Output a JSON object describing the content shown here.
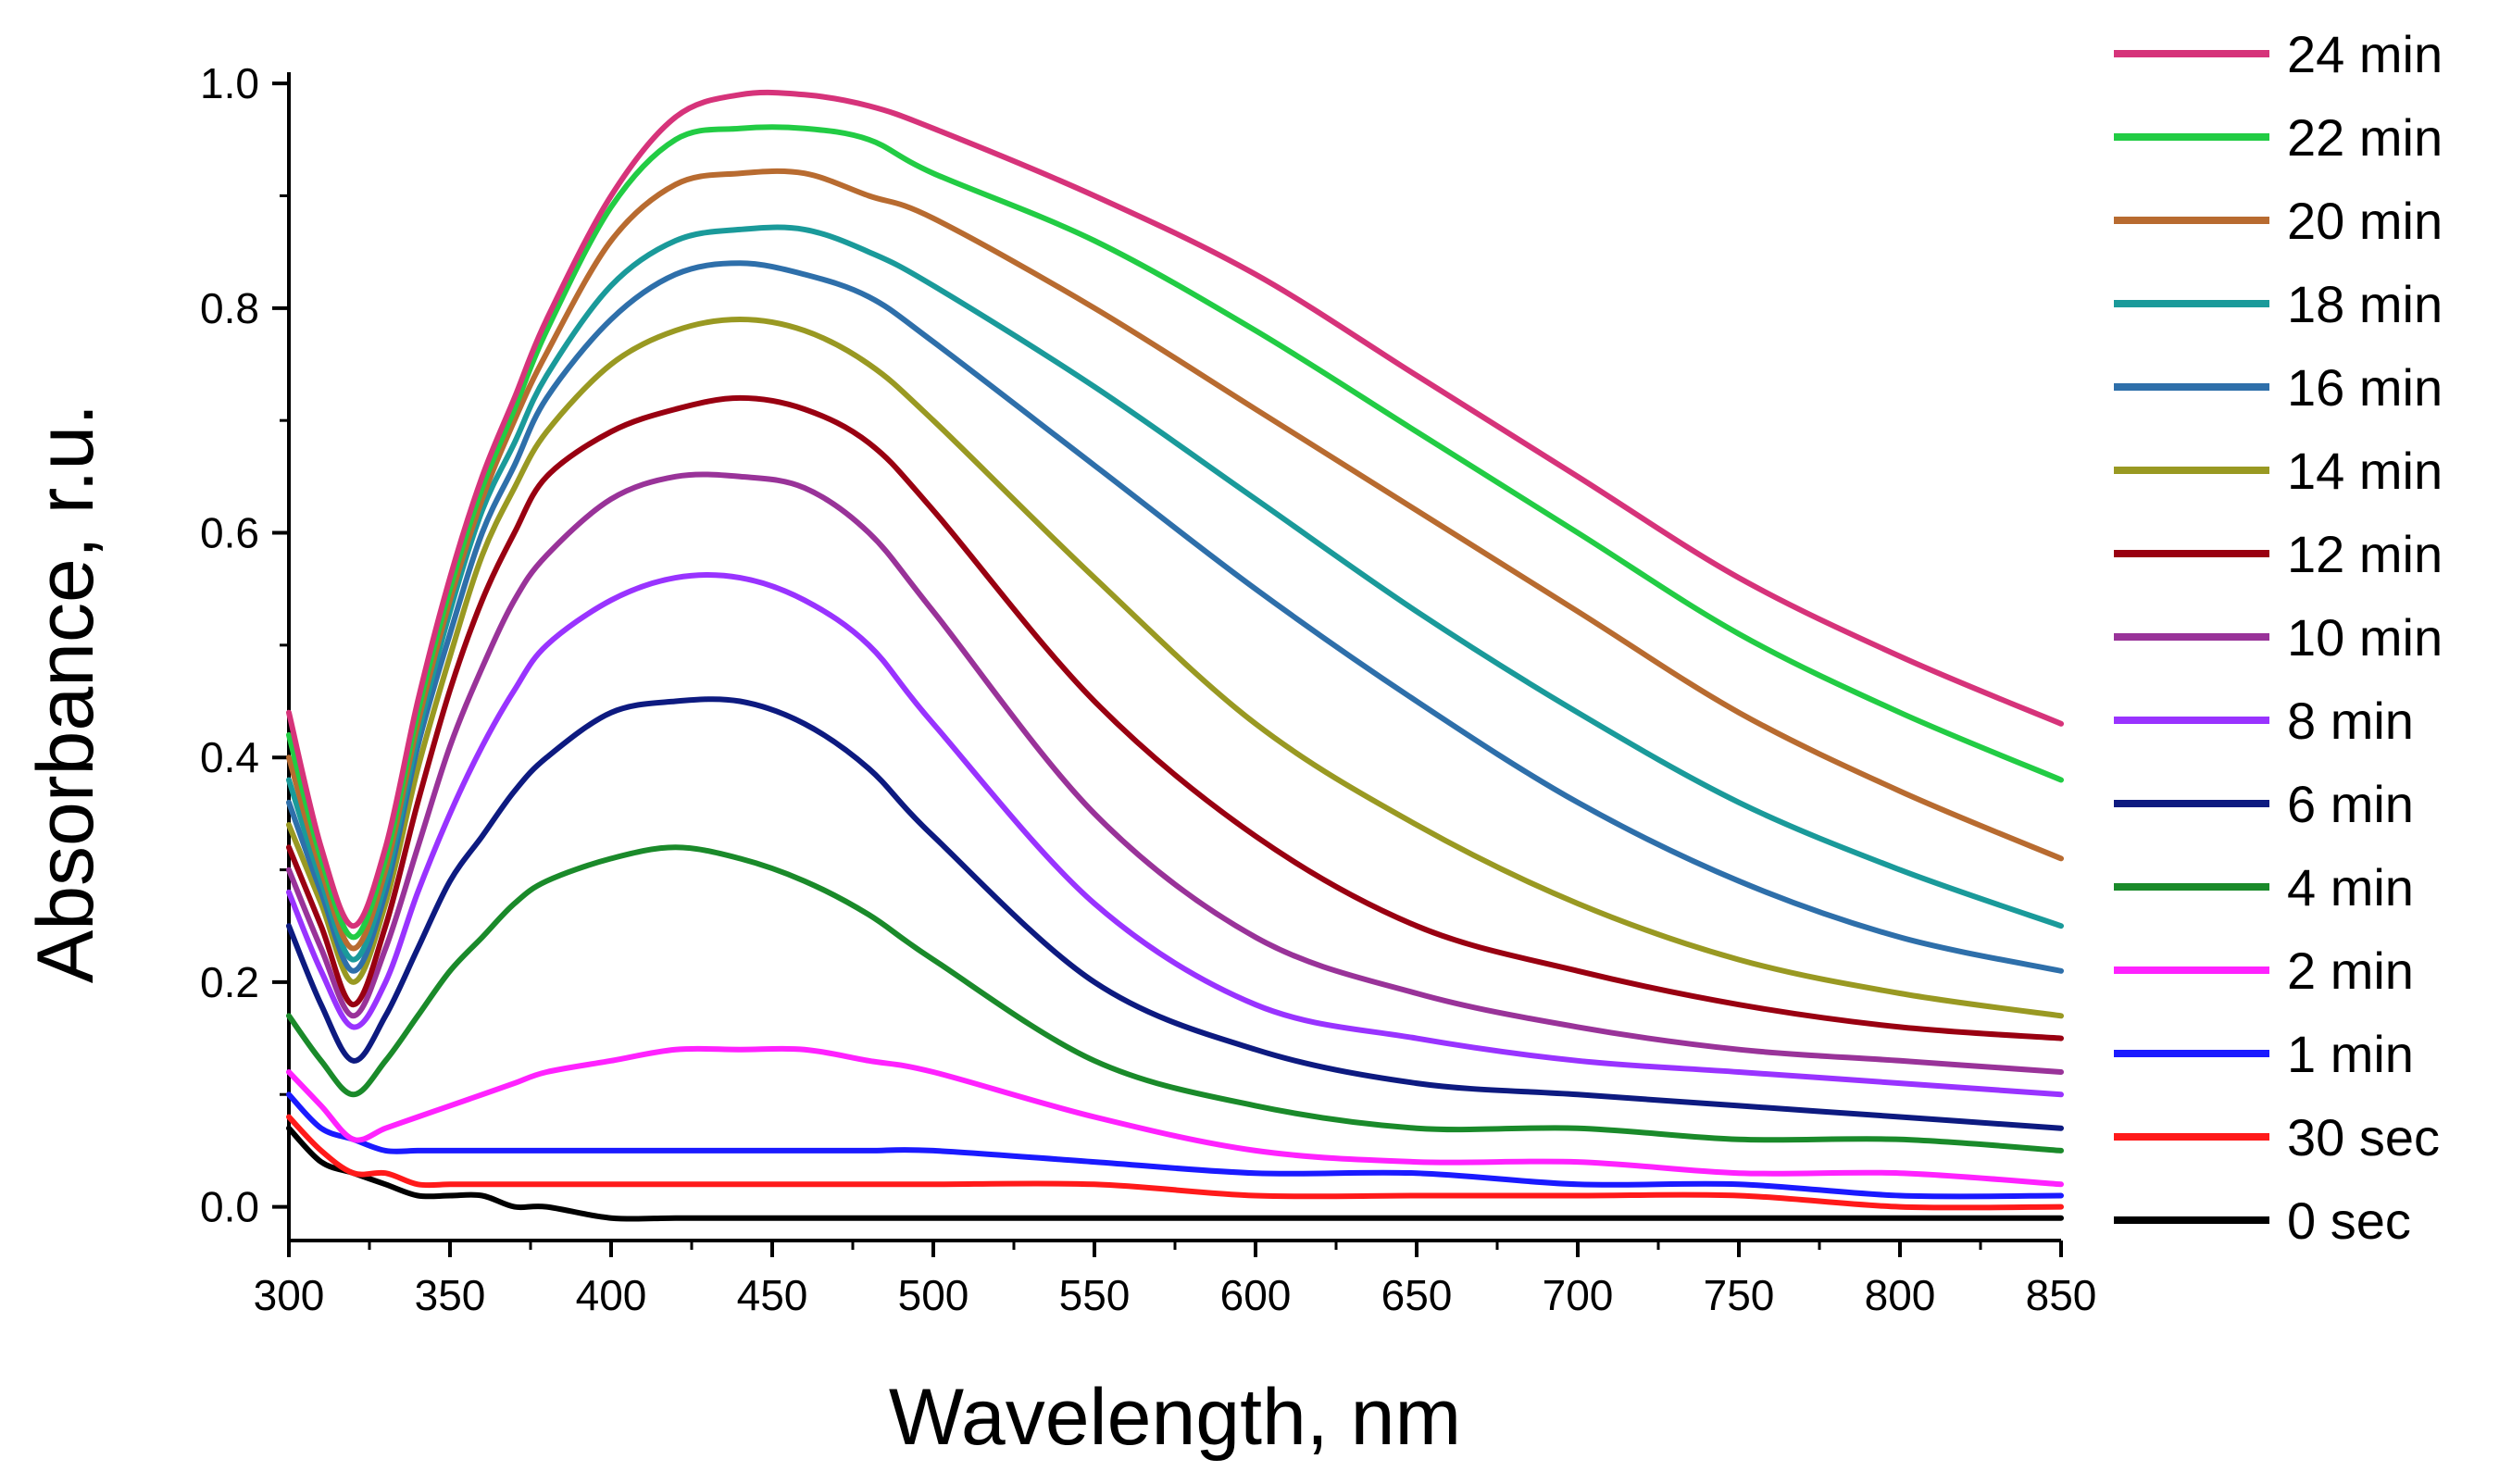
{
  "chart_data": {
    "type": "line",
    "title": "",
    "xlabel": "Wavelength, nm",
    "ylabel": "Absorbance, r.u.",
    "xlim": [
      300,
      850
    ],
    "ylim": [
      -0.03,
      1.01
    ],
    "xticks": [
      300,
      350,
      400,
      450,
      500,
      550,
      600,
      650,
      700,
      750,
      800,
      850
    ],
    "xtick_labels": [
      "300",
      "350",
      "400",
      "450",
      "500",
      "550",
      "600",
      "650",
      "700",
      "750",
      "800",
      "850"
    ],
    "yticks": [
      0.0,
      0.2,
      0.4,
      0.6,
      0.8,
      1.0
    ],
    "ytick_labels": [
      "0.0",
      "0.2",
      "0.4",
      "0.6",
      "0.8",
      "1.0"
    ],
    "grid": false,
    "legend_position": "right",
    "x": [
      300,
      310,
      320,
      330,
      340,
      350,
      360,
      370,
      380,
      400,
      420,
      440,
      460,
      480,
      500,
      550,
      600,
      650,
      700,
      750,
      800,
      850
    ],
    "series": [
      {
        "name": "24 min",
        "color": "#d6337a",
        "values": [
          0.44,
          0.32,
          0.25,
          0.32,
          0.45,
          0.56,
          0.65,
          0.72,
          0.79,
          0.9,
          0.97,
          0.99,
          0.99,
          0.98,
          0.96,
          0.9,
          0.83,
          0.74,
          0.65,
          0.56,
          0.49,
          0.43
        ]
      },
      {
        "name": "22 min",
        "color": "#22cc44",
        "values": [
          0.42,
          0.31,
          0.24,
          0.31,
          0.44,
          0.55,
          0.64,
          0.71,
          0.78,
          0.89,
          0.95,
          0.96,
          0.96,
          0.95,
          0.92,
          0.86,
          0.78,
          0.69,
          0.6,
          0.51,
          0.44,
          0.38
        ]
      },
      {
        "name": "20 min",
        "color": "#b86b30",
        "values": [
          0.4,
          0.3,
          0.23,
          0.3,
          0.43,
          0.54,
          0.63,
          0.7,
          0.76,
          0.86,
          0.91,
          0.92,
          0.92,
          0.9,
          0.88,
          0.8,
          0.71,
          0.62,
          0.53,
          0.44,
          0.37,
          0.31
        ]
      },
      {
        "name": "18 min",
        "color": "#1a9a9a",
        "values": [
          0.38,
          0.29,
          0.22,
          0.29,
          0.42,
          0.53,
          0.62,
          0.68,
          0.74,
          0.82,
          0.86,
          0.87,
          0.87,
          0.85,
          0.82,
          0.73,
          0.63,
          0.53,
          0.44,
          0.36,
          0.3,
          0.25
        ]
      },
      {
        "name": "16 min",
        "color": "#2e6faa",
        "values": [
          0.36,
          0.28,
          0.21,
          0.28,
          0.41,
          0.51,
          0.6,
          0.66,
          0.72,
          0.79,
          0.83,
          0.84,
          0.83,
          0.81,
          0.77,
          0.66,
          0.55,
          0.45,
          0.36,
          0.29,
          0.24,
          0.21
        ]
      },
      {
        "name": "14 min",
        "color": "#999922",
        "values": [
          0.34,
          0.27,
          0.2,
          0.27,
          0.39,
          0.49,
          0.58,
          0.64,
          0.69,
          0.75,
          0.78,
          0.79,
          0.78,
          0.75,
          0.7,
          0.56,
          0.43,
          0.34,
          0.27,
          0.22,
          0.19,
          0.17
        ]
      },
      {
        "name": "12 min",
        "color": "#990011",
        "values": [
          0.32,
          0.25,
          0.18,
          0.25,
          0.36,
          0.46,
          0.54,
          0.6,
          0.65,
          0.69,
          0.71,
          0.72,
          0.71,
          0.68,
          0.62,
          0.45,
          0.33,
          0.25,
          0.21,
          0.18,
          0.16,
          0.15
        ]
      },
      {
        "name": "10 min",
        "color": "#993399",
        "values": [
          0.3,
          0.23,
          0.17,
          0.23,
          0.32,
          0.41,
          0.48,
          0.54,
          0.58,
          0.63,
          0.65,
          0.65,
          0.64,
          0.6,
          0.53,
          0.35,
          0.24,
          0.19,
          0.16,
          0.14,
          0.13,
          0.12
        ]
      },
      {
        "name": "8 min",
        "color": "#9933ff",
        "values": [
          0.28,
          0.21,
          0.16,
          0.2,
          0.28,
          0.35,
          0.41,
          0.46,
          0.5,
          0.54,
          0.56,
          0.56,
          0.54,
          0.5,
          0.43,
          0.27,
          0.18,
          0.15,
          0.13,
          0.12,
          0.11,
          0.1
        ]
      },
      {
        "name": "6 min",
        "color": "#0d1a80",
        "values": [
          0.25,
          0.18,
          0.13,
          0.17,
          0.23,
          0.29,
          0.33,
          0.37,
          0.4,
          0.44,
          0.45,
          0.45,
          0.43,
          0.39,
          0.33,
          0.2,
          0.14,
          0.11,
          0.1,
          0.09,
          0.08,
          0.07
        ]
      },
      {
        "name": "4 min",
        "color": "#1a8a2a",
        "values": [
          0.17,
          0.13,
          0.1,
          0.13,
          0.17,
          0.21,
          0.24,
          0.27,
          0.29,
          0.31,
          0.32,
          0.31,
          0.29,
          0.26,
          0.22,
          0.13,
          0.09,
          0.07,
          0.07,
          0.06,
          0.06,
          0.05
        ]
      },
      {
        "name": "2 min",
        "color": "#ff22ff",
        "values": [
          0.12,
          0.09,
          0.06,
          0.07,
          0.08,
          0.09,
          0.1,
          0.11,
          0.12,
          0.13,
          0.14,
          0.14,
          0.14,
          0.13,
          0.12,
          0.08,
          0.05,
          0.04,
          0.04,
          0.03,
          0.03,
          0.02
        ]
      },
      {
        "name": "1 min",
        "color": "#1a1aff",
        "values": [
          0.1,
          0.07,
          0.06,
          0.05,
          0.05,
          0.05,
          0.05,
          0.05,
          0.05,
          0.05,
          0.05,
          0.05,
          0.05,
          0.05,
          0.05,
          0.04,
          0.03,
          0.03,
          0.02,
          0.02,
          0.01,
          0.01
        ]
      },
      {
        "name": "30 sec",
        "color": "#ff1a1a",
        "values": [
          0.08,
          0.05,
          0.03,
          0.03,
          0.02,
          0.02,
          0.02,
          0.02,
          0.02,
          0.02,
          0.02,
          0.02,
          0.02,
          0.02,
          0.02,
          0.02,
          0.01,
          0.01,
          0.01,
          0.01,
          0.0,
          0.0
        ]
      },
      {
        "name": "0 sec",
        "color": "#000000",
        "values": [
          0.07,
          0.04,
          0.03,
          0.02,
          0.01,
          0.01,
          0.01,
          0.0,
          0.0,
          -0.01,
          -0.01,
          -0.01,
          -0.01,
          -0.01,
          -0.01,
          -0.01,
          -0.01,
          -0.01,
          -0.01,
          -0.01,
          -0.01,
          -0.01
        ]
      }
    ]
  }
}
